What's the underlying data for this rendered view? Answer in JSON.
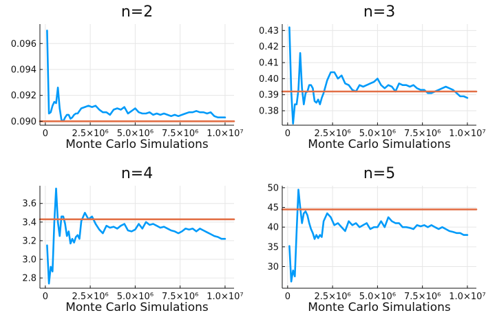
{
  "chart_data": [
    {
      "type": "line",
      "title": "n=2",
      "xlabel": "Monte Carlo Simulations",
      "xlim": [
        -300000,
        10500000
      ],
      "ylim": [
        0.0897,
        0.0975
      ],
      "xticks": [
        0,
        2500000,
        5000000,
        7500000,
        10000000
      ],
      "xtick_labels": [
        "0",
        "2.5×10⁶",
        "5.0×10⁶",
        "7.5×10⁶",
        "1.0×10⁷"
      ],
      "yticks": [
        0.09,
        0.092,
        0.094,
        0.096
      ],
      "ytick_labels": [
        "0.090",
        "0.092",
        "0.094",
        "0.096"
      ],
      "grid": true,
      "series": [
        {
          "color": "#009af9",
          "x": [
            100000,
            200000,
            300000,
            400000,
            500000,
            600000,
            700000,
            800000,
            900000,
            1000000,
            1100000,
            1200000,
            1300000,
            1400000,
            1500000,
            1600000,
            1700000,
            1800000,
            1900000,
            2000000,
            2200000,
            2400000,
            2600000,
            2800000,
            3000000,
            3200000,
            3400000,
            3600000,
            3800000,
            4000000,
            4200000,
            4400000,
            4600000,
            4800000,
            5000000,
            5200000,
            5400000,
            5600000,
            5800000,
            6000000,
            6200000,
            6400000,
            6600000,
            6800000,
            7000000,
            7200000,
            7400000,
            7600000,
            7800000,
            8000000,
            8200000,
            8400000,
            8600000,
            8800000,
            9000000,
            9200000,
            9400000,
            9600000,
            9800000,
            10000000
          ],
          "y": [
            0.097,
            0.0906,
            0.0907,
            0.0912,
            0.0915,
            0.0914,
            0.0926,
            0.091,
            0.0901,
            0.09,
            0.0903,
            0.0905,
            0.0905,
            0.0902,
            0.0903,
            0.0905,
            0.0906,
            0.0906,
            0.0908,
            0.091,
            0.0911,
            0.0912,
            0.0911,
            0.0912,
            0.0909,
            0.0907,
            0.0907,
            0.0905,
            0.0909,
            0.091,
            0.0909,
            0.0911,
            0.0906,
            0.0908,
            0.091,
            0.0907,
            0.0906,
            0.0906,
            0.0907,
            0.0905,
            0.0906,
            0.0905,
            0.0906,
            0.0905,
            0.0904,
            0.0905,
            0.0904,
            0.0905,
            0.0906,
            0.0907,
            0.0907,
            0.0908,
            0.0907,
            0.0907,
            0.0906,
            0.0907,
            0.0904,
            0.0903,
            0.0903,
            0.0903
          ]
        },
        {
          "color": "#e26f46",
          "x": [
            -300000,
            10500000
          ],
          "y": [
            0.09,
            0.09
          ]
        }
      ]
    },
    {
      "type": "line",
      "title": "n=3",
      "xlabel": "Monte Carlo Simulations",
      "xlim": [
        -300000,
        10500000
      ],
      "ylim": [
        0.371,
        0.434
      ],
      "xticks": [
        0,
        2500000,
        5000000,
        7500000,
        10000000
      ],
      "xtick_labels": [
        "0",
        "2.5×10⁶",
        "5.0×10⁶",
        "7.5×10⁶",
        "1.0×10⁷"
      ],
      "yticks": [
        0.38,
        0.39,
        0.4,
        0.41,
        0.42,
        0.43
      ],
      "ytick_labels": [
        "0.38",
        "0.39",
        "0.40",
        "0.41",
        "0.42",
        "0.43"
      ],
      "grid": true,
      "series": [
        {
          "color": "#009af9",
          "x": [
            100000,
            200000,
            300000,
            400000,
            500000,
            600000,
            700000,
            800000,
            900000,
            1000000,
            1100000,
            1200000,
            1300000,
            1400000,
            1500000,
            1600000,
            1700000,
            1800000,
            1900000,
            2000000,
            2200000,
            2400000,
            2600000,
            2800000,
            3000000,
            3200000,
            3400000,
            3600000,
            3800000,
            4000000,
            4200000,
            4400000,
            4600000,
            4800000,
            5000000,
            5200000,
            5400000,
            5600000,
            5800000,
            6000000,
            6200000,
            6400000,
            6600000,
            6800000,
            7000000,
            7200000,
            7400000,
            7600000,
            7800000,
            8000000,
            8200000,
            8400000,
            8600000,
            8800000,
            9000000,
            9200000,
            9400000,
            9600000,
            9800000,
            10000000
          ],
          "y": [
            0.432,
            0.392,
            0.372,
            0.384,
            0.384,
            0.393,
            0.416,
            0.394,
            0.384,
            0.391,
            0.392,
            0.396,
            0.396,
            0.394,
            0.386,
            0.385,
            0.387,
            0.384,
            0.388,
            0.391,
            0.399,
            0.404,
            0.404,
            0.4,
            0.402,
            0.397,
            0.396,
            0.393,
            0.392,
            0.396,
            0.395,
            0.396,
            0.397,
            0.398,
            0.4,
            0.396,
            0.394,
            0.396,
            0.395,
            0.392,
            0.397,
            0.396,
            0.396,
            0.395,
            0.396,
            0.394,
            0.393,
            0.393,
            0.391,
            0.391,
            0.392,
            0.393,
            0.394,
            0.395,
            0.394,
            0.393,
            0.391,
            0.389,
            0.389,
            0.388
          ]
        },
        {
          "color": "#e26f46",
          "x": [
            -300000,
            10500000
          ],
          "y": [
            0.392,
            0.392
          ]
        }
      ]
    },
    {
      "type": "line",
      "title": "n=4",
      "xlabel": "Monte Carlo Simulations",
      "xlim": [
        -300000,
        10500000
      ],
      "ylim": [
        2.69,
        3.79
      ],
      "xticks": [
        0,
        2500000,
        5000000,
        7500000,
        10000000
      ],
      "xtick_labels": [
        "0",
        "2.5×10⁶",
        "5.0×10⁶",
        "7.5×10⁶",
        "1.0×10⁷"
      ],
      "yticks": [
        2.8,
        3.0,
        3.2,
        3.4,
        3.6
      ],
      "ytick_labels": [
        "2.8",
        "3.0",
        "3.2",
        "3.4",
        "3.6"
      ],
      "grid": true,
      "series": [
        {
          "color": "#009af9",
          "x": [
            100000,
            200000,
            300000,
            400000,
            500000,
            600000,
            700000,
            800000,
            900000,
            1000000,
            1100000,
            1200000,
            1300000,
            1400000,
            1500000,
            1600000,
            1700000,
            1800000,
            1900000,
            2000000,
            2200000,
            2400000,
            2600000,
            2800000,
            3000000,
            3200000,
            3400000,
            3600000,
            3800000,
            4000000,
            4200000,
            4400000,
            4600000,
            4800000,
            5000000,
            5200000,
            5400000,
            5600000,
            5800000,
            6000000,
            6200000,
            6400000,
            6600000,
            6800000,
            7000000,
            7200000,
            7400000,
            7600000,
            7800000,
            8000000,
            8200000,
            8400000,
            8600000,
            8800000,
            9000000,
            9200000,
            9400000,
            9600000,
            9800000,
            10000000
          ],
          "y": [
            3.15,
            2.74,
            2.92,
            2.87,
            3.4,
            3.76,
            3.4,
            3.25,
            3.46,
            3.46,
            3.38,
            3.25,
            3.3,
            3.17,
            3.22,
            3.18,
            3.24,
            3.26,
            3.22,
            3.41,
            3.5,
            3.43,
            3.46,
            3.38,
            3.32,
            3.28,
            3.36,
            3.34,
            3.35,
            3.33,
            3.36,
            3.38,
            3.31,
            3.3,
            3.32,
            3.38,
            3.33,
            3.4,
            3.37,
            3.38,
            3.36,
            3.34,
            3.35,
            3.33,
            3.31,
            3.3,
            3.28,
            3.3,
            3.33,
            3.32,
            3.33,
            3.3,
            3.33,
            3.31,
            3.29,
            3.27,
            3.25,
            3.24,
            3.22,
            3.22
          ]
        },
        {
          "color": "#e26f46",
          "x": [
            -300000,
            10500000
          ],
          "y": [
            3.43,
            3.43
          ]
        }
      ]
    },
    {
      "type": "line",
      "title": "n=5",
      "xlabel": "Monte Carlo Simulations",
      "xlim": [
        -300000,
        10500000
      ],
      "ylim": [
        24.5,
        50.5
      ],
      "xticks": [
        0,
        2500000,
        5000000,
        7500000,
        10000000
      ],
      "xtick_labels": [
        "0",
        "2.5×10⁶",
        "5.0×10⁶",
        "7.5×10⁶",
        "1.0×10⁷"
      ],
      "yticks": [
        30,
        35,
        40,
        45,
        50
      ],
      "ytick_labels": [
        "30",
        "35",
        "40",
        "45",
        "50"
      ],
      "grid": true,
      "series": [
        {
          "color": "#009af9",
          "x": [
            100000,
            200000,
            300000,
            400000,
            500000,
            600000,
            700000,
            800000,
            900000,
            1000000,
            1100000,
            1200000,
            1300000,
            1400000,
            1500000,
            1600000,
            1700000,
            1800000,
            1900000,
            2000000,
            2200000,
            2400000,
            2600000,
            2800000,
            3000000,
            3200000,
            3400000,
            3600000,
            3800000,
            4000000,
            4200000,
            4400000,
            4600000,
            4800000,
            5000000,
            5200000,
            5400000,
            5600000,
            5800000,
            6000000,
            6200000,
            6400000,
            6600000,
            6800000,
            7000000,
            7200000,
            7400000,
            7600000,
            7800000,
            8000000,
            8200000,
            8400000,
            8600000,
            8800000,
            9000000,
            9200000,
            9400000,
            9600000,
            9800000,
            10000000
          ],
          "y": [
            35.2,
            26.2,
            29.0,
            27.5,
            39.0,
            49.5,
            45.0,
            41.0,
            43.5,
            44.0,
            43.0,
            41.0,
            39.5,
            38.5,
            37.0,
            38.0,
            37.2,
            38.0,
            37.5,
            41.5,
            43.5,
            42.5,
            40.5,
            41.0,
            40.0,
            39.0,
            41.5,
            40.5,
            41.0,
            40.0,
            40.5,
            41.0,
            39.5,
            40.0,
            40.0,
            41.5,
            40.0,
            42.5,
            41.5,
            41.0,
            41.0,
            40.0,
            40.0,
            39.8,
            39.5,
            40.5,
            40.2,
            40.5,
            40.0,
            40.5,
            40.0,
            39.5,
            40.0,
            39.5,
            39.0,
            38.8,
            38.5,
            38.5,
            38.0,
            38.0
          ]
        },
        {
          "color": "#e26f46",
          "x": [
            -300000,
            10500000
          ],
          "y": [
            44.5,
            44.5
          ]
        }
      ]
    }
  ]
}
